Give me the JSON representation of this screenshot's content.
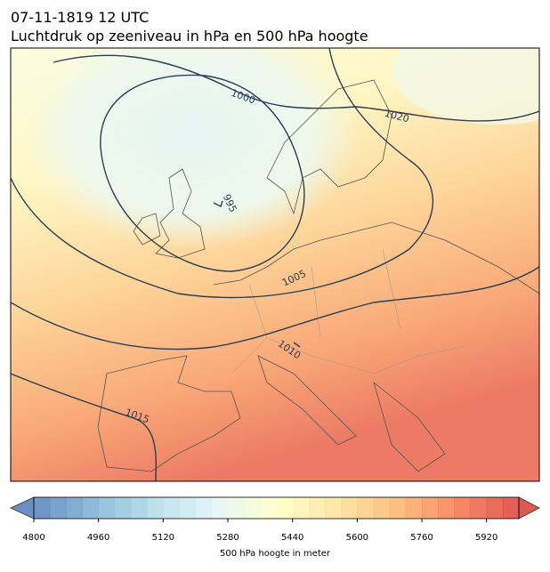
{
  "title": "07-11-1819 12 UTC",
  "subtitle": "Luchtdruk op zeeniveau in hPa en 500 hPa hoogte",
  "isobar_labels": [
    "1000",
    "1020",
    "995",
    "1005",
    "1010",
    "1015"
  ],
  "colorbar": {
    "label": "500 hPa hoogte in meter",
    "lim": [
      4800,
      6000
    ],
    "step": 40,
    "ticks": [
      4800,
      4960,
      5120,
      5280,
      5440,
      5600,
      5760,
      5920
    ]
  }
}
